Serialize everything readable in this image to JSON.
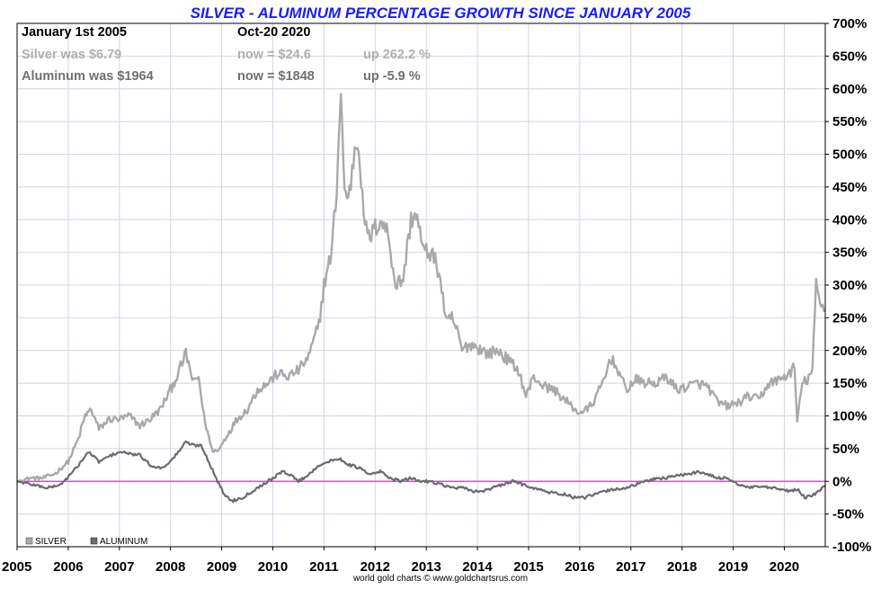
{
  "chart_data": {
    "type": "line",
    "title": "SILVER - ALUMINUM PERCENTAGE GROWTH SINCE JANUARY 2005",
    "xlabel": "",
    "ylabel": "",
    "xlim": [
      2005,
      2020.8
    ],
    "ylim": [
      -100,
      700
    ],
    "y_axis_position": "right",
    "grid": true,
    "legend_placement": "bottom-left",
    "x_ticks": [
      "2005",
      "2006",
      "2007",
      "2008",
      "2009",
      "2010",
      "2011",
      "2012",
      "2013",
      "2014",
      "2015",
      "2016",
      "2017",
      "2018",
      "2019",
      "2020"
    ],
    "y_ticks": [
      "700%",
      "650%",
      "600%",
      "550%",
      "500%",
      "450%",
      "400%",
      "350%",
      "300%",
      "250%",
      "200%",
      "150%",
      "100%",
      "50%",
      "0%",
      "-50%",
      "-100%"
    ],
    "reference_line": {
      "y": 0,
      "color": "#cc33cc"
    },
    "annotations": {
      "start_label": "January 1st 2005",
      "end_label": "Oct-20  2020",
      "silver_was": "Silver was $6.79",
      "silver_now": "now = $24.6",
      "silver_up": "up 262.2 %",
      "aluminum_was": "Aluminum was $1964",
      "aluminum_now": "now = $1848",
      "aluminum_up": "up -5.9 %"
    },
    "series": [
      {
        "name": "SILVER",
        "color": "#a9a9a9",
        "x": [
          2005.0,
          2005.25,
          2005.5,
          2005.75,
          2006.0,
          2006.2,
          2006.33,
          2006.45,
          2006.6,
          2006.8,
          2007.0,
          2007.2,
          2007.4,
          2007.6,
          2007.8,
          2008.0,
          2008.15,
          2008.3,
          2008.45,
          2008.55,
          2008.65,
          2008.8,
          2008.92,
          2009.1,
          2009.3,
          2009.5,
          2009.7,
          2009.9,
          2010.1,
          2010.3,
          2010.5,
          2010.7,
          2010.9,
          2011.0,
          2011.15,
          2011.25,
          2011.33,
          2011.4,
          2011.5,
          2011.6,
          2011.68,
          2011.75,
          2011.85,
          2011.95,
          2012.1,
          2012.25,
          2012.4,
          2012.55,
          2012.7,
          2012.8,
          2012.95,
          2013.1,
          2013.25,
          2013.4,
          2013.5,
          2013.6,
          2013.7,
          2013.85,
          2014.0,
          2014.2,
          2014.4,
          2014.6,
          2014.8,
          2014.95,
          2015.1,
          2015.3,
          2015.5,
          2015.7,
          2015.9,
          2016.0,
          2016.15,
          2016.3,
          2016.5,
          2016.6,
          2016.75,
          2016.9,
          2017.1,
          2017.3,
          2017.5,
          2017.7,
          2017.9,
          2018.1,
          2018.3,
          2018.5,
          2018.7,
          2018.9,
          2019.1,
          2019.3,
          2019.5,
          2019.7,
          2019.9,
          2020.1,
          2020.2,
          2020.25,
          2020.35,
          2020.45,
          2020.55,
          2020.62,
          2020.7,
          2020.8
        ],
        "y": [
          0,
          5,
          5,
          12,
          30,
          65,
          100,
          110,
          80,
          95,
          95,
          100,
          85,
          95,
          110,
          140,
          165,
          195,
          150,
          160,
          100,
          50,
          45,
          70,
          95,
          110,
          140,
          150,
          165,
          160,
          170,
          190,
          240,
          300,
          350,
          450,
          600,
          440,
          440,
          510,
          520,
          430,
          370,
          380,
          400,
          380,
          300,
          310,
          400,
          410,
          350,
          350,
          320,
          240,
          250,
          230,
          200,
          210,
          205,
          195,
          200,
          185,
          170,
          130,
          160,
          145,
          140,
          125,
          110,
          105,
          110,
          125,
          160,
          190,
          170,
          140,
          155,
          150,
          150,
          160,
          140,
          145,
          150,
          145,
          120,
          115,
          120,
          130,
          125,
          150,
          155,
          165,
          175,
          90,
          150,
          155,
          170,
          300,
          270,
          262
        ]
      },
      {
        "name": "ALUMINUM",
        "color": "#6b6b6b",
        "x": [
          2005.0,
          2005.3,
          2005.6,
          2005.85,
          2006.1,
          2006.3,
          2006.4,
          2006.6,
          2006.85,
          2007.0,
          2007.2,
          2007.4,
          2007.6,
          2007.8,
          2008.0,
          2008.15,
          2008.3,
          2008.45,
          2008.6,
          2008.75,
          2008.92,
          2009.05,
          2009.2,
          2009.4,
          2009.6,
          2009.8,
          2010.0,
          2010.2,
          2010.35,
          2010.5,
          2010.7,
          2010.9,
          2011.1,
          2011.3,
          2011.5,
          2011.7,
          2011.9,
          2012.1,
          2012.3,
          2012.5,
          2012.7,
          2012.9,
          2013.1,
          2013.3,
          2013.5,
          2013.7,
          2013.9,
          2014.1,
          2014.3,
          2014.5,
          2014.7,
          2014.9,
          2015.1,
          2015.3,
          2015.5,
          2015.7,
          2015.9,
          2016.1,
          2016.3,
          2016.5,
          2016.7,
          2016.9,
          2017.1,
          2017.3,
          2017.5,
          2017.7,
          2017.9,
          2018.1,
          2018.3,
          2018.5,
          2018.7,
          2018.9,
          2019.1,
          2019.3,
          2019.5,
          2019.7,
          2019.9,
          2020.1,
          2020.25,
          2020.4,
          2020.6,
          2020.8
        ],
        "y": [
          0,
          -5,
          -10,
          -5,
          15,
          35,
          45,
          30,
          40,
          45,
          42,
          40,
          25,
          20,
          30,
          45,
          60,
          55,
          55,
          30,
          0,
          -20,
          -30,
          -25,
          -15,
          -5,
          5,
          15,
          10,
          0,
          10,
          25,
          30,
          35,
          25,
          20,
          10,
          15,
          5,
          0,
          5,
          0,
          0,
          -5,
          -10,
          -10,
          -15,
          -15,
          -10,
          -5,
          0,
          -5,
          -10,
          -15,
          -18,
          -20,
          -25,
          -25,
          -20,
          -15,
          -12,
          -10,
          -5,
          0,
          5,
          5,
          10,
          10,
          15,
          10,
          5,
          5,
          -5,
          -10,
          -8,
          -10,
          -12,
          -15,
          -12,
          -25,
          -20,
          -6
        ]
      }
    ]
  },
  "credit": "world gold charts © www.goldchartsrus.com"
}
